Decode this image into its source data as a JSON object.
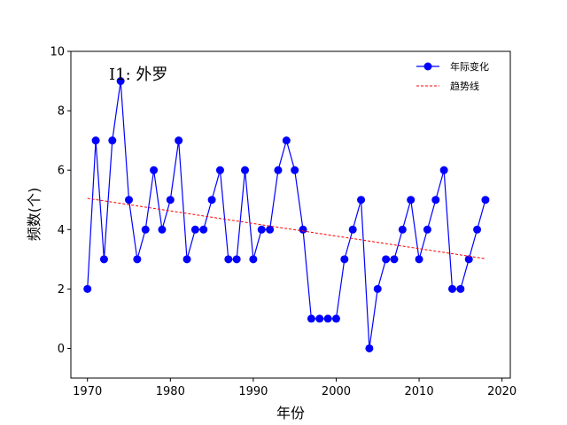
{
  "chart_data": {
    "type": "line",
    "xlabel": "年份",
    "ylabel": "频数(个)",
    "annotation": "I1: 外罗",
    "xlim": [
      1968,
      2021
    ],
    "ylim": [
      -1,
      10
    ],
    "xticks": [
      1970,
      1980,
      1990,
      2000,
      2010,
      2020
    ],
    "yticks": [
      0,
      2,
      4,
      6,
      8,
      10
    ],
    "legend_position": "top-right",
    "series": [
      {
        "name": "年际变化",
        "style": "line-with-markers",
        "color": "#0000ff",
        "x": [
          1970,
          1971,
          1972,
          1973,
          1974,
          1975,
          1976,
          1977,
          1978,
          1979,
          1980,
          1981,
          1982,
          1983,
          1984,
          1985,
          1986,
          1987,
          1988,
          1989,
          1990,
          1991,
          1992,
          1993,
          1994,
          1995,
          1996,
          1997,
          1998,
          1999,
          2000,
          2001,
          2002,
          2003,
          2004,
          2005,
          2006,
          2007,
          2008,
          2009,
          2010,
          2011,
          2012,
          2013,
          2014,
          2015,
          2016,
          2017,
          2018
        ],
        "values": [
          2,
          7,
          3,
          7,
          9,
          5,
          3,
          4,
          6,
          4,
          5,
          7,
          3,
          4,
          4,
          5,
          6,
          3,
          3,
          6,
          3,
          4,
          4,
          6,
          7,
          6,
          4,
          1,
          1,
          1,
          1,
          3,
          4,
          5,
          0,
          2,
          3,
          3,
          4,
          5,
          3,
          4,
          5,
          6,
          2,
          2,
          3,
          4,
          5
        ]
      },
      {
        "name": "趋势线",
        "style": "dashed",
        "color": "#ff0000",
        "x": [
          1970,
          2018
        ],
        "values": [
          5.05,
          3.02
        ]
      }
    ]
  }
}
